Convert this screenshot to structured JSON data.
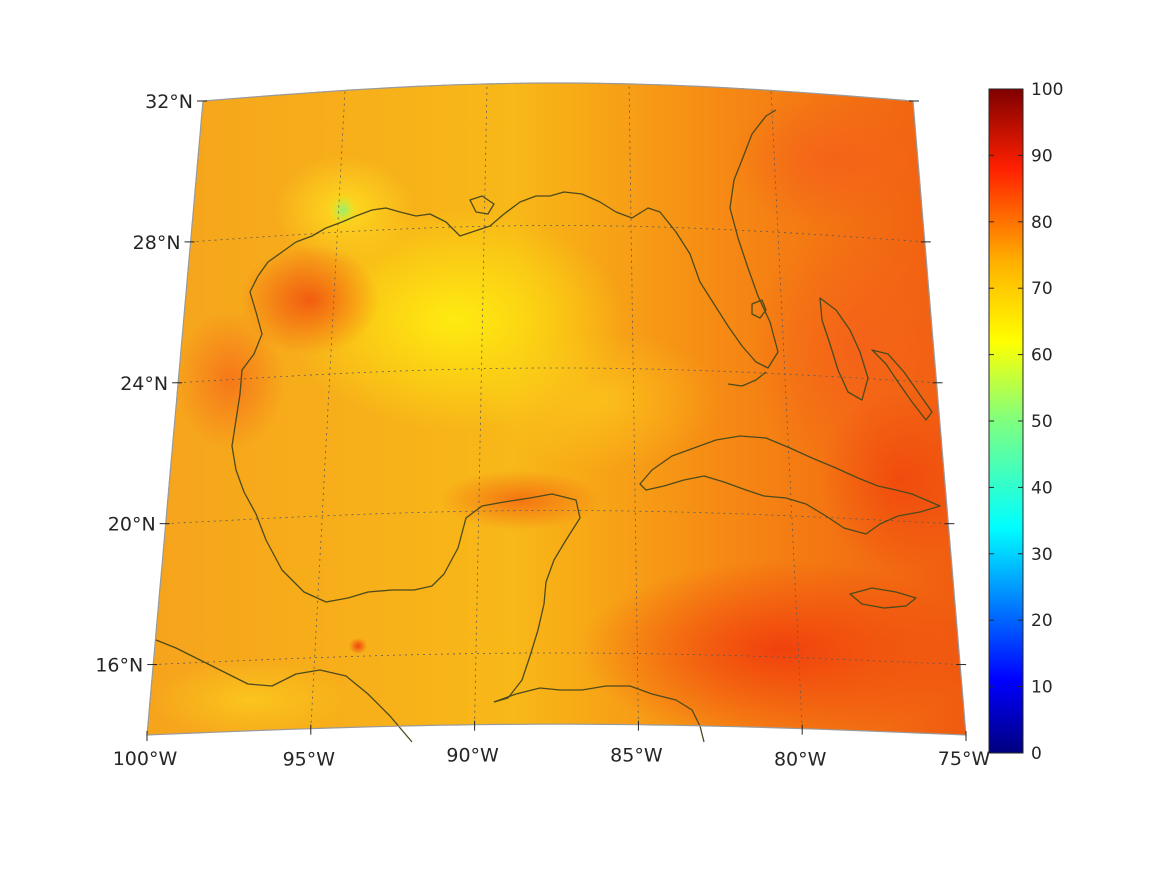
{
  "map": {
    "region": "Gulf of Mexico and Caribbean",
    "projection": "conic",
    "extent": {
      "lon": [
        -100,
        -75
      ],
      "lat": [
        14,
        32
      ]
    },
    "lat_ticks": [
      {
        "value": 32,
        "label": "32°N"
      },
      {
        "value": 28,
        "label": "28°N"
      },
      {
        "value": 24,
        "label": "24°N"
      },
      {
        "value": 20,
        "label": "20°N"
      },
      {
        "value": 16,
        "label": "16°N"
      }
    ],
    "lon_ticks": [
      {
        "value": -100,
        "label": "100°W"
      },
      {
        "value": -95,
        "label": "95°W"
      },
      {
        "value": -90,
        "label": "90°W"
      },
      {
        "value": -85,
        "label": "85°W"
      },
      {
        "value": -80,
        "label": "80°W"
      },
      {
        "value": -75,
        "label": "75°W"
      }
    ],
    "colors": {
      "coastline": "#4d4a1c",
      "grid": "#5a5a5a",
      "frame": "#9a9a9a"
    },
    "field_colormap": "jet",
    "field_range_typical": [
      60,
      85
    ]
  },
  "colorbar": {
    "min": 0,
    "max": 100,
    "ticks": [
      "0",
      "10",
      "20",
      "30",
      "40",
      "50",
      "60",
      "70",
      "80",
      "90",
      "100"
    ],
    "colormap": "jet",
    "colors": [
      "#00007f",
      "#0000ff",
      "#007fff",
      "#00ffff",
      "#7fff7f",
      "#ffff00",
      "#ff7f00",
      "#ff0000",
      "#7f0000"
    ]
  }
}
